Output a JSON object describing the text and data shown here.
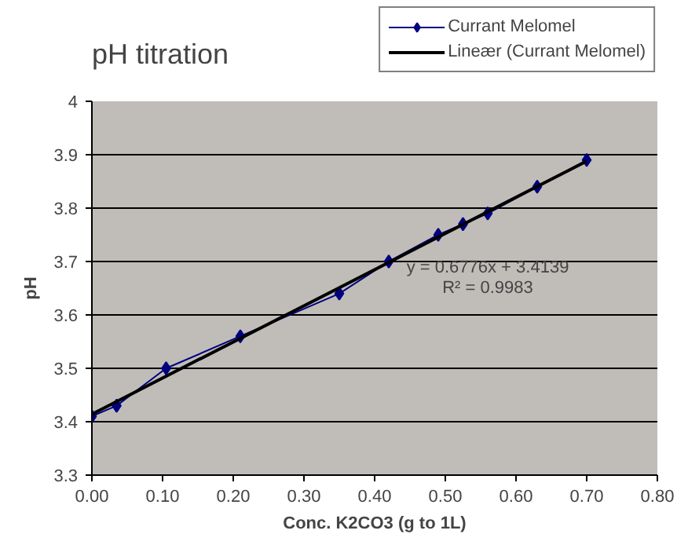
{
  "chart_data": {
    "type": "line",
    "title": "pH titration",
    "xlabel": "Conc. K2CO3 (g to 1L)",
    "ylabel": "pH",
    "x": [
      0,
      0.035,
      0.105,
      0.21,
      0.35,
      0.42,
      0.49,
      0.525,
      0.56,
      0.63,
      0.7
    ],
    "series": [
      {
        "name": "Currant Melomel",
        "color": "#000080",
        "values": [
          3.41,
          3.43,
          3.5,
          3.56,
          3.64,
          3.7,
          3.75,
          3.77,
          3.79,
          3.84,
          3.89
        ],
        "marker": "diamond"
      },
      {
        "name": "Lineær (Currant Melomel)",
        "color": "#000000",
        "x": [
          0,
          0.7
        ],
        "values": [
          3.414,
          3.888
        ],
        "marker": "none"
      }
    ],
    "xlim": [
      0,
      0.8
    ],
    "xticks": [
      {
        "value": 0,
        "label": "0.00"
      },
      {
        "value": 0.1,
        "label": "0.10"
      },
      {
        "value": 0.2,
        "label": "0.20"
      },
      {
        "value": 0.3,
        "label": "0.30"
      },
      {
        "value": 0.4,
        "label": "0.40"
      },
      {
        "value": 0.5,
        "label": "0.50"
      },
      {
        "value": 0.6,
        "label": "0.60"
      },
      {
        "value": 0.7,
        "label": "0.70"
      },
      {
        "value": 0.8,
        "label": "0.80"
      }
    ],
    "ylim": [
      3.3,
      4
    ],
    "yticks": [
      3.3,
      3.4,
      3.5,
      3.6,
      3.7,
      3.8,
      3.9,
      4
    ],
    "grid": "y",
    "legend": "top right",
    "annotations": [
      "y = 0.6776x + 3.4139",
      "R² = 0.9983"
    ]
  }
}
